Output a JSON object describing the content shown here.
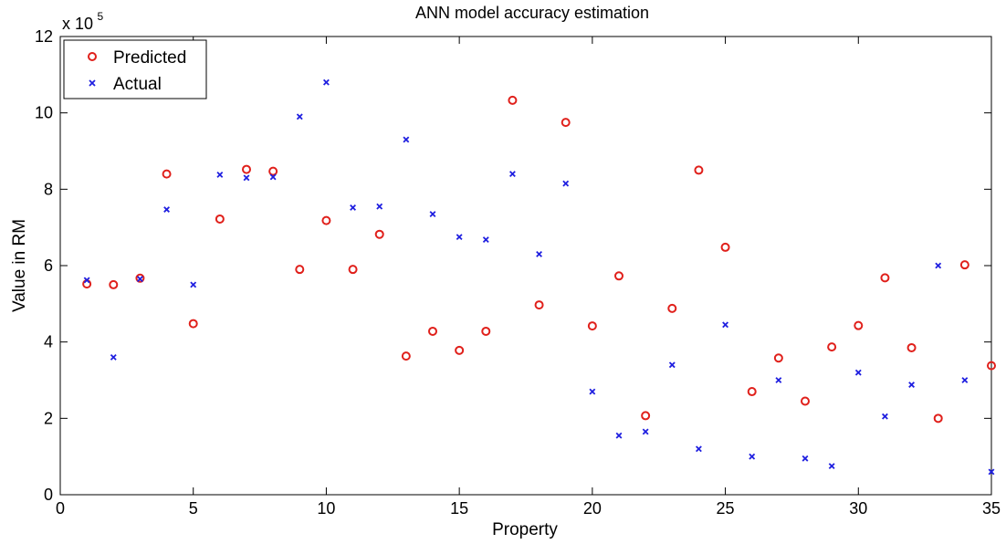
{
  "chart_data": {
    "type": "scatter",
    "title": "ANN model accuracy estimation",
    "xlabel": "Property",
    "ylabel": "Value in RM",
    "xlim": [
      0,
      35
    ],
    "ylim": [
      0,
      12
    ],
    "y_multiplier": {
      "base": "x 10",
      "exponent": "5"
    },
    "xticks": [
      "0",
      "5",
      "10",
      "15",
      "20",
      "25",
      "30",
      "35"
    ],
    "yticks": [
      "0",
      "2",
      "4",
      "6",
      "8",
      "10",
      "12"
    ],
    "grid": false,
    "legend_position": "top-left",
    "series": [
      {
        "name": "Predicted",
        "marker": "circle",
        "color": "#e0201b",
        "x": [
          1,
          2,
          3,
          4,
          5,
          6,
          7,
          8,
          9,
          10,
          11,
          12,
          13,
          14,
          15,
          16,
          17,
          18,
          19,
          20,
          21,
          22,
          23,
          24,
          25,
          26,
          27,
          28,
          29,
          30,
          31,
          32,
          33,
          34,
          35
        ],
        "y": [
          5.52,
          5.5,
          5.67,
          8.4,
          4.48,
          7.22,
          8.52,
          8.47,
          5.9,
          7.18,
          5.9,
          6.82,
          3.63,
          4.28,
          3.78,
          4.28,
          10.33,
          4.97,
          9.75,
          4.42,
          5.73,
          2.07,
          4.88,
          8.5,
          6.48,
          2.7,
          3.58,
          2.45,
          3.87,
          4.43,
          5.68,
          3.85,
          2.0,
          6.02,
          3.38
        ]
      },
      {
        "name": "Actual",
        "marker": "x",
        "color": "#1f1fe0",
        "x": [
          1,
          2,
          3,
          4,
          5,
          6,
          7,
          8,
          9,
          10,
          11,
          12,
          13,
          14,
          15,
          16,
          17,
          18,
          19,
          20,
          21,
          22,
          23,
          24,
          25,
          26,
          27,
          28,
          29,
          30,
          31,
          32,
          33,
          34,
          35
        ],
        "y": [
          5.62,
          3.6,
          5.65,
          7.47,
          5.5,
          8.38,
          8.3,
          8.32,
          9.9,
          10.8,
          7.52,
          7.55,
          9.3,
          7.35,
          6.75,
          6.68,
          8.4,
          6.3,
          8.15,
          2.7,
          1.55,
          1.65,
          3.4,
          1.2,
          4.45,
          1.0,
          3.0,
          0.95,
          0.75,
          3.2,
          2.05,
          2.88,
          6.0,
          3.0,
          0.6
        ]
      }
    ]
  }
}
